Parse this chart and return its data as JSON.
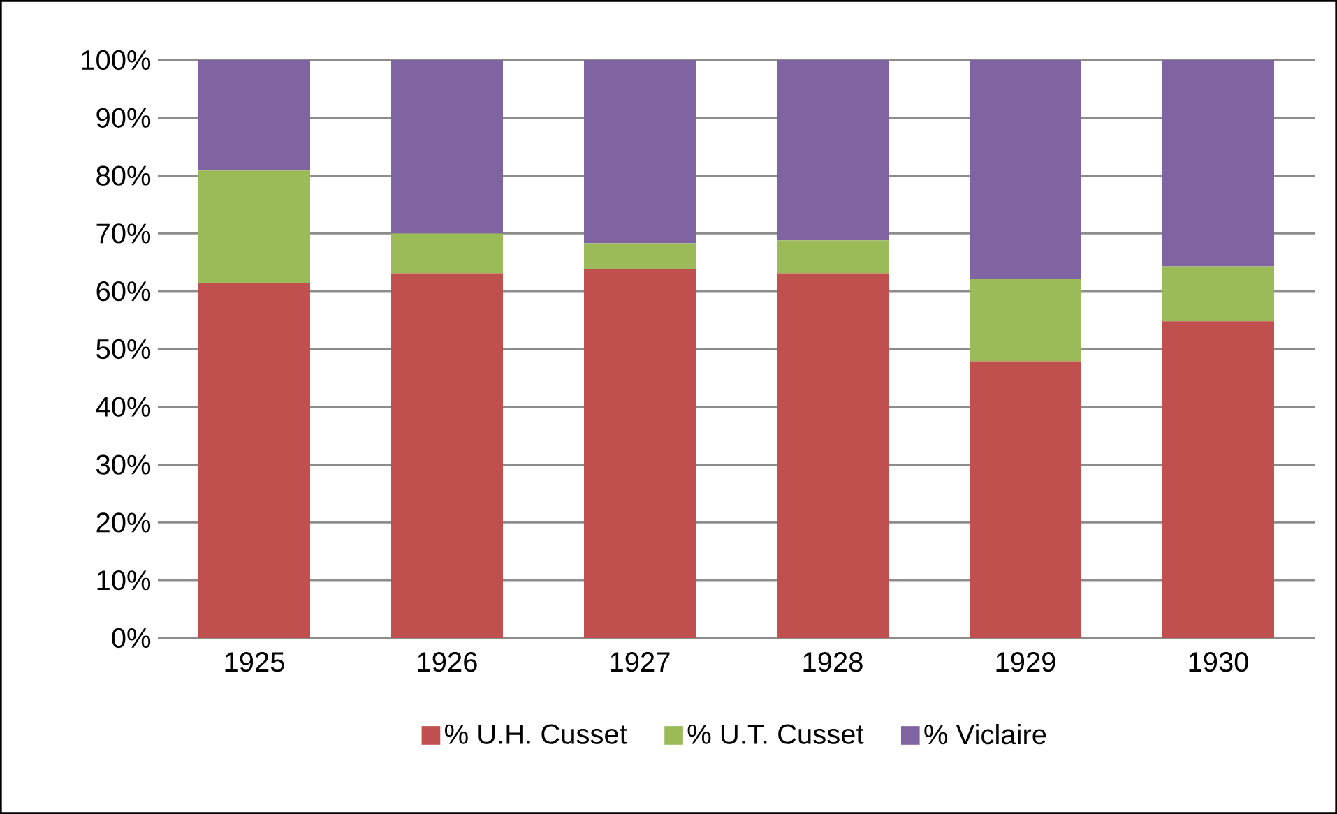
{
  "chart_data": {
    "type": "bar",
    "stacked": true,
    "categories": [
      "1925",
      "1926",
      "1927",
      "1928",
      "1929",
      "1930"
    ],
    "series": [
      {
        "name": "% U.H. Cusset",
        "color": "#c0504d",
        "values": [
          61.4,
          63.1,
          63.8,
          63.1,
          47.9,
          54.8
        ]
      },
      {
        "name": "% U.T. Cusset",
        "color": "#9bbb59",
        "values": [
          19.5,
          6.9,
          4.5,
          5.7,
          14.3,
          9.5
        ]
      },
      {
        "name": "% Viclaire",
        "color": "#8064a2",
        "values": [
          19.1,
          30.0,
          31.7,
          31.2,
          37.8,
          35.7
        ]
      }
    ],
    "ylim": [
      0,
      100
    ],
    "yticks": [
      {
        "value": 0,
        "label": "0%"
      },
      {
        "value": 10,
        "label": "10%"
      },
      {
        "value": 20,
        "label": "20%"
      },
      {
        "value": 30,
        "label": "30%"
      },
      {
        "value": 40,
        "label": "40%"
      },
      {
        "value": 50,
        "label": "50%"
      },
      {
        "value": 60,
        "label": "60%"
      },
      {
        "value": 70,
        "label": "70%"
      },
      {
        "value": 80,
        "label": "80%"
      },
      {
        "value": 90,
        "label": "90%"
      },
      {
        "value": 100,
        "label": "100%"
      }
    ],
    "grid": "y",
    "legend": "bottom"
  }
}
